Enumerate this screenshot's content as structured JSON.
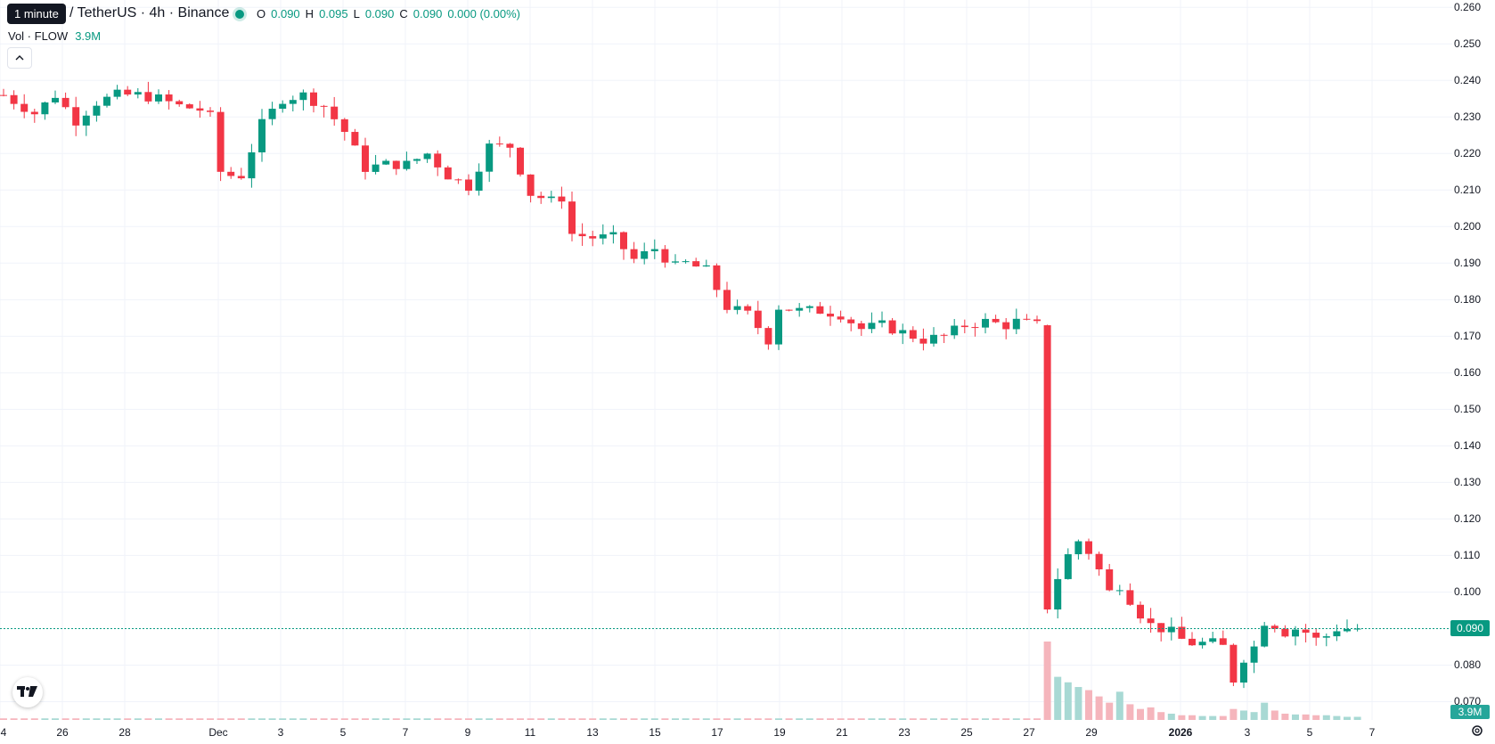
{
  "tooltip": "1 minute",
  "header": {
    "symbol": "/ TetherUS · 4h · Binance",
    "ohlc": {
      "o_key": "O",
      "o_val": "0.090",
      "h_key": "H",
      "h_val": "0.095",
      "l_key": "L",
      "l_val": "0.090",
      "c_key": "C",
      "c_val": "0.090",
      "change": "0.000 (0.00%)"
    },
    "volume_label": "Vol · FLOW",
    "volume_value": "3.9M"
  },
  "last_price_badge": "0.090",
  "volume_badge": "3.9M",
  "logo_text": "TV",
  "icons": {
    "collapse": "chevron-up-icon",
    "settings": "gear-icon",
    "logo": "tradingview-logo-icon"
  },
  "colors": {
    "up": "#089981",
    "down": "#f23645",
    "up_volume": "#a8d9d4",
    "down_volume": "#f5b5bc",
    "grid": "#f0f3fa"
  },
  "price_ticks": [
    "0.260",
    "0.250",
    "0.240",
    "0.230",
    "0.220",
    "0.210",
    "0.200",
    "0.190",
    "0.180",
    "0.170",
    "0.160",
    "0.150",
    "0.140",
    "0.130",
    "0.120",
    "0.110",
    "0.100",
    "0.080",
    "0.070"
  ],
  "time_ticks": [
    "4",
    "26",
    "28",
    "Dec",
    "3",
    "5",
    "7",
    "9",
    "11",
    "13",
    "15",
    "17",
    "19",
    "21",
    "23",
    "25",
    "27",
    "29",
    "2026",
    "3",
    "5",
    "7"
  ],
  "chart_data": {
    "type": "candlestick",
    "interval": "4h",
    "x_ticks": [
      "4",
      "26",
      "28",
      "Dec",
      "3",
      "5",
      "7",
      "9",
      "11",
      "13",
      "15",
      "17",
      "19",
      "21",
      "23",
      "25",
      "27",
      "29",
      "2026",
      "3",
      "5",
      "7"
    ],
    "y_range": [
      0.065,
      0.262
    ],
    "last_price": 0.09,
    "close_path": [
      [
        0,
        0.236
      ],
      [
        3,
        0.231
      ],
      [
        5,
        0.236
      ],
      [
        7,
        0.229
      ],
      [
        9,
        0.234
      ],
      [
        11,
        0.236
      ],
      [
        13,
        0.236
      ],
      [
        15,
        0.235
      ],
      [
        17,
        0.233
      ],
      [
        19,
        0.232
      ],
      [
        20,
        0.23
      ],
      [
        21,
        0.215
      ],
      [
        22,
        0.214
      ],
      [
        23,
        0.214
      ],
      [
        25,
        0.228
      ],
      [
        27,
        0.235
      ],
      [
        29,
        0.236
      ],
      [
        31,
        0.233
      ],
      [
        33,
        0.226
      ],
      [
        35,
        0.216
      ],
      [
        37,
        0.217
      ],
      [
        39,
        0.217
      ],
      [
        41,
        0.22
      ],
      [
        43,
        0.214
      ],
      [
        45,
        0.211
      ],
      [
        47,
        0.222
      ],
      [
        49,
        0.222
      ],
      [
        51,
        0.209
      ],
      [
        53,
        0.207
      ],
      [
        54,
        0.208
      ],
      [
        55,
        0.198
      ],
      [
        57,
        0.197
      ],
      [
        59,
        0.197
      ],
      [
        61,
        0.191
      ],
      [
        63,
        0.194
      ],
      [
        65,
        0.189
      ],
      [
        66,
        0.19
      ],
      [
        68,
        0.188
      ],
      [
        70,
        0.178
      ],
      [
        72,
        0.176
      ],
      [
        74,
        0.169
      ],
      [
        75,
        0.178
      ],
      [
        77,
        0.177
      ],
      [
        79,
        0.177
      ],
      [
        81,
        0.176
      ],
      [
        83,
        0.172
      ],
      [
        85,
        0.173
      ],
      [
        87,
        0.171
      ],
      [
        89,
        0.169
      ],
      [
        91,
        0.17
      ],
      [
        93,
        0.173
      ],
      [
        95,
        0.174
      ],
      [
        97,
        0.173
      ],
      [
        98,
        0.174
      ],
      [
        100,
        0.173
      ],
      [
        101,
        0.096
      ],
      [
        102,
        0.104
      ],
      [
        103,
        0.11
      ],
      [
        104,
        0.114
      ],
      [
        105,
        0.111
      ],
      [
        106,
        0.106
      ],
      [
        107,
        0.1
      ],
      [
        108,
        0.102
      ],
      [
        109,
        0.098
      ],
      [
        110,
        0.094
      ],
      [
        111,
        0.091
      ],
      [
        112,
        0.09
      ],
      [
        113,
        0.089
      ],
      [
        114,
        0.087
      ],
      [
        115,
        0.086
      ],
      [
        116,
        0.086
      ],
      [
        117,
        0.086
      ],
      [
        118,
        0.085
      ],
      [
        119,
        0.076
      ],
      [
        120,
        0.082
      ],
      [
        121,
        0.085
      ],
      [
        122,
        0.092
      ],
      [
        123,
        0.091
      ],
      [
        124,
        0.089
      ],
      [
        125,
        0.09
      ],
      [
        126,
        0.089
      ],
      [
        127,
        0.087
      ],
      [
        128,
        0.088
      ],
      [
        129,
        0.09
      ],
      [
        130,
        0.09
      ],
      [
        131,
        0.09
      ]
    ],
    "volume_path": [
      [
        0,
        0.02
      ],
      [
        100,
        0.02
      ],
      [
        101,
        1.0
      ],
      [
        102,
        0.55
      ],
      [
        103,
        0.48
      ],
      [
        104,
        0.42
      ],
      [
        105,
        0.38
      ],
      [
        106,
        0.3
      ],
      [
        107,
        0.22
      ],
      [
        108,
        0.36
      ],
      [
        109,
        0.2
      ],
      [
        110,
        0.14
      ],
      [
        111,
        0.16
      ],
      [
        112,
        0.1
      ],
      [
        113,
        0.08
      ],
      [
        114,
        0.06
      ],
      [
        115,
        0.06
      ],
      [
        116,
        0.05
      ],
      [
        117,
        0.05
      ],
      [
        118,
        0.05
      ],
      [
        119,
        0.14
      ],
      [
        120,
        0.12
      ],
      [
        121,
        0.1
      ],
      [
        122,
        0.22
      ],
      [
        123,
        0.12
      ],
      [
        124,
        0.08
      ],
      [
        125,
        0.07
      ],
      [
        126,
        0.07
      ],
      [
        127,
        0.06
      ],
      [
        128,
        0.06
      ],
      [
        129,
        0.05
      ],
      [
        130,
        0.04
      ],
      [
        131,
        0.04
      ]
    ]
  }
}
